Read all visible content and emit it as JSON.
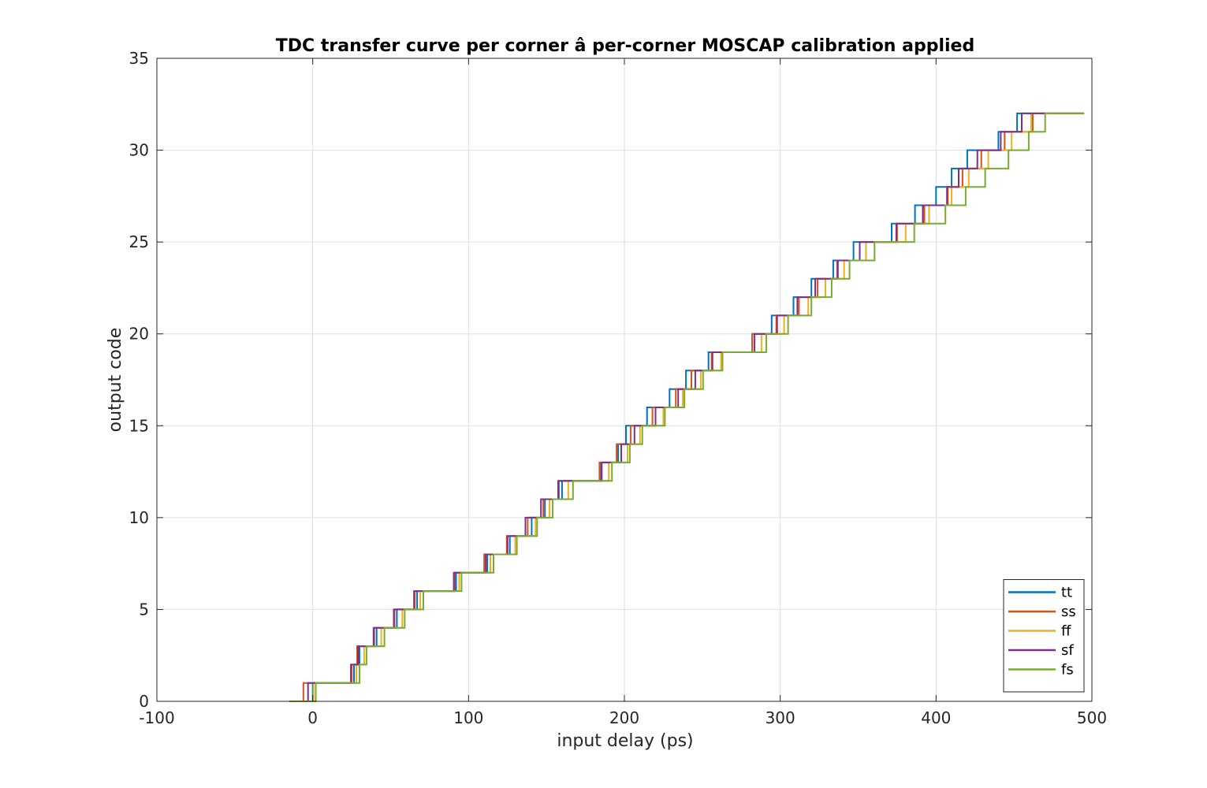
{
  "chart_data": {
    "type": "line",
    "title": "TDC transfer curve per corner â per-corner MOSCAP calibration applied",
    "xlabel": "input delay (ps)",
    "ylabel": "output code",
    "xlim": [
      -100,
      500
    ],
    "ylim": [
      0,
      35
    ],
    "xticks": [
      -100,
      0,
      100,
      200,
      300,
      400,
      500
    ],
    "yticks": [
      0,
      5,
      10,
      15,
      20,
      25,
      30,
      35
    ],
    "grid": true,
    "legend_location": "bottom-right",
    "x_start": -15,
    "x_end": 495,
    "step_shape": "staircase: each series holds code k-1 until its k-th transition delay, then steps up to code k",
    "series": [
      {
        "name": "tt",
        "color": "#0072BD",
        "transitions": [
          0.0,
          26.5,
          30.0,
          41.0,
          54.0,
          67.0,
          92.0,
          112.0,
          126.5,
          140.5,
          149.0,
          160.0,
          185.0,
          196.0,
          201.0,
          214.5,
          229.0,
          239.5,
          254.0,
          282.0,
          294.5,
          308.5,
          320.0,
          334.0,
          347.0,
          371.5,
          386.5,
          400.0,
          410.0,
          420.0,
          440.0,
          452.0
        ]
      },
      {
        "name": "ss",
        "color": "#D95319",
        "transitions": [
          -6.0,
          25.0,
          28.5,
          39.5,
          52.5,
          65.5,
          91.0,
          110.0,
          124.5,
          138.0,
          148.0,
          158.0,
          184.0,
          195.0,
          204.0,
          218.0,
          233.0,
          243.0,
          256.0,
          282.0,
          297.5,
          312.0,
          324.0,
          336.5,
          351.0,
          375.0,
          392.5,
          407.5,
          417.0,
          429.0,
          444.0,
          462.0
        ]
      },
      {
        "name": "ff",
        "color": "#EDB120",
        "transitions": [
          0.5,
          28.0,
          33.0,
          44.0,
          57.5,
          69.0,
          94.0,
          114.0,
          130.0,
          143.0,
          152.0,
          164.0,
          190.0,
          202.0,
          210.0,
          225.0,
          237.5,
          249.0,
          262.0,
          288.0,
          302.5,
          318.0,
          329.0,
          341.0,
          355.0,
          380.5,
          395.5,
          410.0,
          421.0,
          433.5,
          448.5,
          461.0
        ]
      },
      {
        "name": "sf",
        "color": "#7E2F8E",
        "transitions": [
          -3.0,
          24.5,
          29.0,
          39.0,
          52.0,
          65.0,
          90.5,
          111.0,
          125.0,
          136.5,
          146.5,
          157.5,
          185.5,
          198.0,
          206.5,
          220.0,
          234.5,
          245.5,
          256.5,
          283.5,
          298.0,
          311.0,
          322.5,
          337.0,
          351.0,
          374.5,
          391.5,
          407.0,
          414.5,
          426.5,
          441.5,
          455.0
        ]
      },
      {
        "name": "fs",
        "color": "#77AC30",
        "transitions": [
          2.0,
          30.0,
          34.5,
          46.0,
          59.0,
          71.0,
          95.5,
          116.0,
          131.0,
          144.0,
          154.0,
          167.0,
          192.0,
          203.5,
          211.5,
          226.0,
          238.5,
          250.5,
          263.0,
          291.0,
          305.0,
          320.0,
          333.0,
          344.5,
          360.5,
          386.0,
          406.0,
          419.0,
          431.5,
          446.5,
          459.5,
          470.0
        ]
      }
    ]
  }
}
